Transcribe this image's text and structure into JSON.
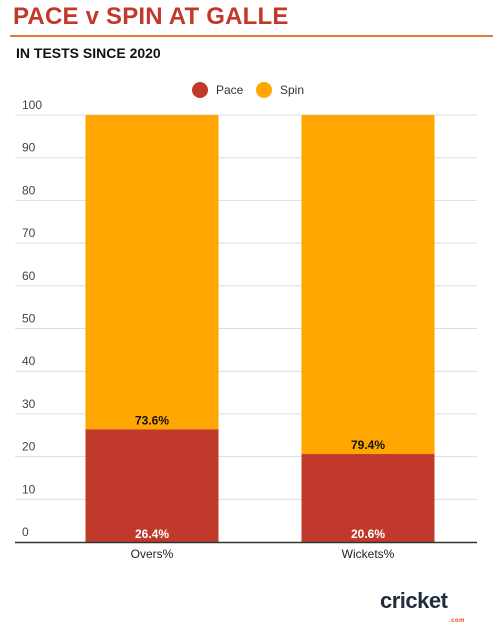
{
  "header": {
    "title": "PACE v SPIN AT GALLE",
    "subtitle": "IN TESTS SINCE 2020"
  },
  "logo": {
    "text": "cricket",
    "suffix": ".com"
  },
  "chart_data": {
    "type": "bar",
    "stacked": true,
    "categories": [
      "Overs%",
      "Wickets%"
    ],
    "series": [
      {
        "name": "Pace",
        "color": "#c0392b",
        "values": [
          26.4,
          20.6
        ],
        "labels": [
          "26.4%",
          "20.6%"
        ]
      },
      {
        "name": "Spin",
        "color": "#ffa600",
        "values": [
          73.6,
          79.4
        ],
        "labels": [
          "73.6%",
          "79.4%"
        ]
      }
    ],
    "yticks": [
      0,
      10,
      20,
      30,
      40,
      50,
      60,
      70,
      80,
      90,
      100
    ],
    "ylim": [
      0,
      100
    ],
    "grid": true,
    "legend": "top-center"
  }
}
